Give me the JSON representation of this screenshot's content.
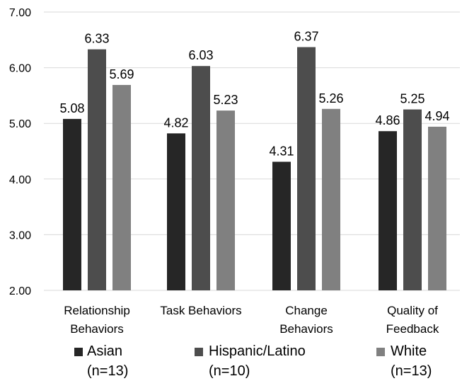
{
  "chart_data": {
    "type": "bar",
    "categories": [
      [
        "Relationship",
        "Behaviors"
      ],
      [
        "Task Behaviors"
      ],
      [
        "Change",
        "Behaviors"
      ],
      [
        "Quality of",
        "Feedback"
      ]
    ],
    "series": [
      {
        "name": [
          "Asian",
          "(n=13)"
        ],
        "color": "#262626",
        "values": [
          5.08,
          4.82,
          4.31,
          4.86
        ]
      },
      {
        "name": [
          "Hispanic/Latino",
          "(n=10)"
        ],
        "color": "#4d4d4d",
        "values": [
          6.33,
          6.03,
          6.37,
          5.25
        ]
      },
      {
        "name": [
          "White",
          "(n=13)"
        ],
        "color": "#808080",
        "values": [
          5.69,
          5.23,
          5.26,
          4.94
        ]
      }
    ],
    "yticks": [
      "2.00",
      "3.00",
      "4.00",
      "5.00",
      "6.00",
      "7.00"
    ],
    "ylim": [
      2,
      7
    ],
    "grid": true,
    "legend_position": "bottom"
  }
}
